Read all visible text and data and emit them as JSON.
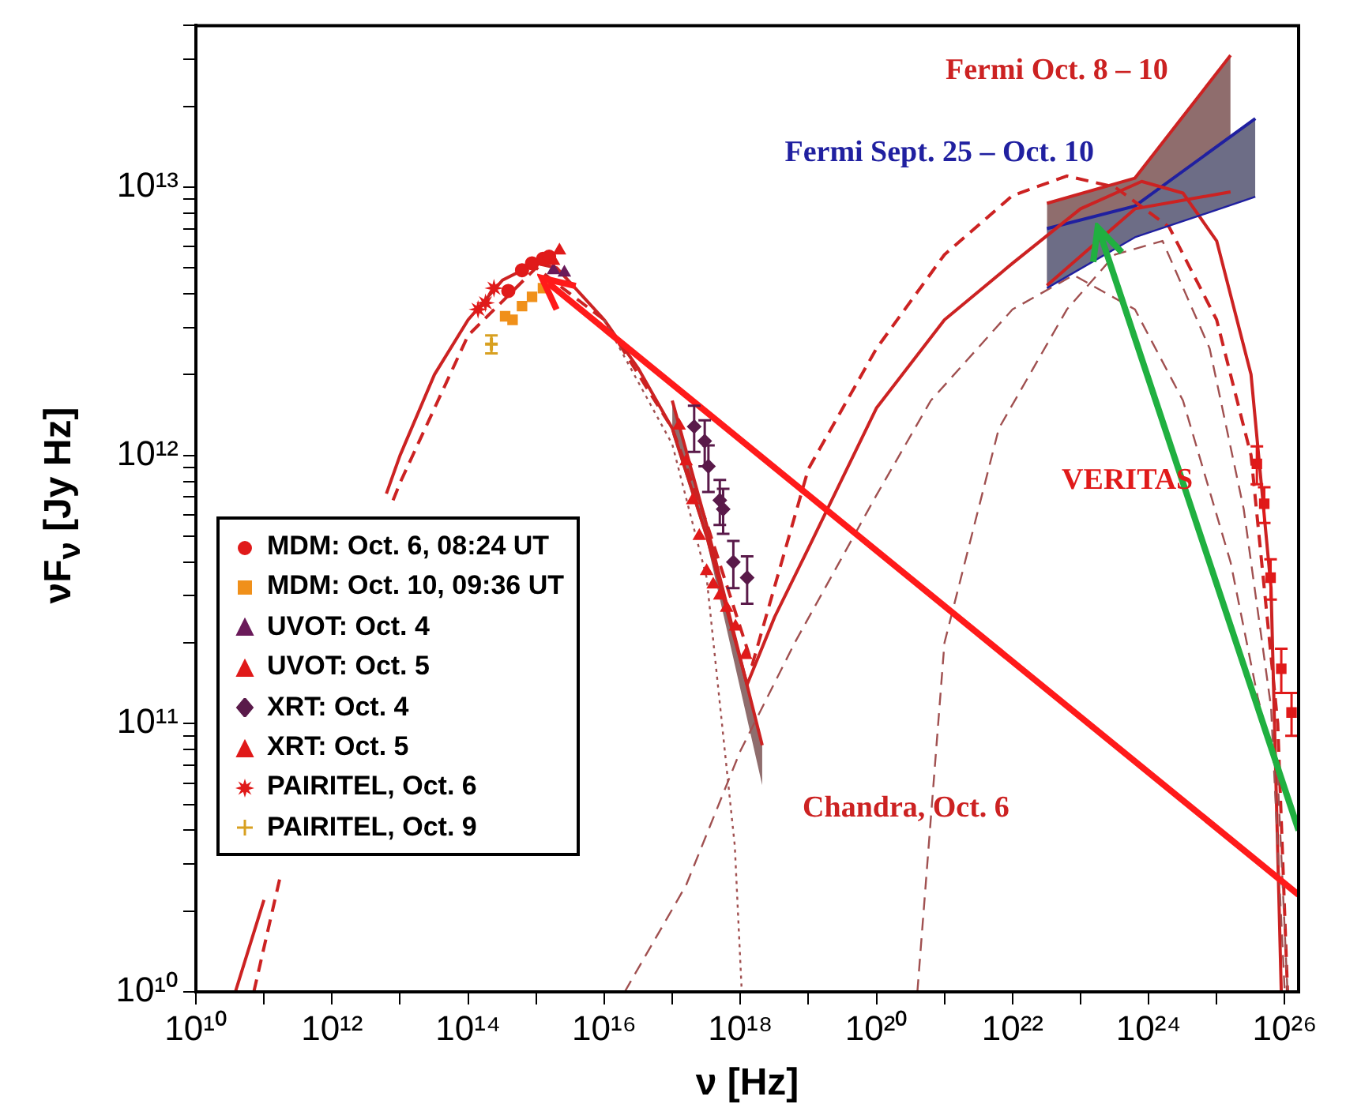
{
  "chart_data": {
    "type": "scatter",
    "xlabel": "ν [Hz]",
    "ylabel": "νF$_{ν}$ [Jy Hz]",
    "log": "xy",
    "grid": false,
    "legend": "left",
    "xlim": [
      10000000000.0,
      1.6e+26
    ],
    "ylim": [
      10000000000.0,
      40000000000000.0
    ],
    "xticks": [
      {
        "value": 10000000000.0,
        "label": "10¹⁰"
      },
      {
        "value": 100000000000.0,
        "label": null
      },
      {
        "value": 1000000000000.0,
        "label": "10¹²"
      },
      {
        "value": 10000000000000.0,
        "label": null
      },
      {
        "value": 100000000000000.0,
        "label": "10¹⁴"
      },
      {
        "value": 1000000000000000.0,
        "label": null
      },
      {
        "value": 1e+16,
        "label": "10¹⁶"
      },
      {
        "value": 1e+17,
        "label": null
      },
      {
        "value": 1e+18,
        "label": "10¹⁸"
      },
      {
        "value": 1e+19,
        "label": null
      },
      {
        "value": 1e+20,
        "label": "10²⁰"
      },
      {
        "value": 1e+21,
        "label": null
      },
      {
        "value": 1e+22,
        "label": "10²²"
      },
      {
        "value": 1e+23,
        "label": null
      },
      {
        "value": 1e+24,
        "label": "10²⁴"
      },
      {
        "value": 1e+25,
        "label": null
      },
      {
        "value": 1e+26,
        "label": "10²⁶"
      }
    ],
    "yticks": [
      {
        "value": 10000000000.0,
        "label": "10¹⁰"
      },
      {
        "value": 20000000000.0,
        "label": null
      },
      {
        "value": 30000000000.0,
        "label": null
      },
      {
        "value": 40000000000.0,
        "label": null
      },
      {
        "value": 50000000000.0,
        "label": null
      },
      {
        "value": 60000000000.0,
        "label": null
      },
      {
        "value": 70000000000.0,
        "label": null
      },
      {
        "value": 80000000000.0,
        "label": null
      },
      {
        "value": 90000000000.0,
        "label": null
      },
      {
        "value": 100000000000.0,
        "label": "10¹¹"
      },
      {
        "value": 200000000000.0,
        "label": null
      },
      {
        "value": 300000000000.0,
        "label": null
      },
      {
        "value": 400000000000.0,
        "label": null
      },
      {
        "value": 500000000000.0,
        "label": null
      },
      {
        "value": 600000000000.0,
        "label": null
      },
      {
        "value": 700000000000.0,
        "label": null
      },
      {
        "value": 800000000000.0,
        "label": null
      },
      {
        "value": 900000000000.0,
        "label": null
      },
      {
        "value": 1000000000000.0,
        "label": "10¹²"
      },
      {
        "value": 2000000000000.0,
        "label": null
      },
      {
        "value": 3000000000000.0,
        "label": null
      },
      {
        "value": 4000000000000.0,
        "label": null
      },
      {
        "value": 5000000000000.0,
        "label": null
      },
      {
        "value": 6000000000000.0,
        "label": null
      },
      {
        "value": 7000000000000.0,
        "label": null
      },
      {
        "value": 8000000000000.0,
        "label": null
      },
      {
        "value": 9000000000000.0,
        "label": null
      },
      {
        "value": 10000000000000.0,
        "label": "10¹³"
      },
      {
        "value": 20000000000000.0,
        "label": null
      },
      {
        "value": 30000000000000.0,
        "label": null
      },
      {
        "value": 40000000000000.0,
        "label": null
      }
    ],
    "series": [
      {
        "type": "line",
        "name": "Fermi Oct. 8 – 10",
        "color": "#cc2222",
        "line_style": "solid",
        "x": [
          3.2e+22,
          6.3e+23,
          1.6e+25
        ],
        "values": [
          8700000000000.0,
          10800000000000.0,
          31000000000000.0
        ],
        "lower": [
          4300000000000.0,
          8300000000000.0,
          9600000000000.0
        ],
        "upper": [
          8700000000000.0,
          10800000000000.0,
          31000000000000.0
        ]
      },
      {
        "type": "line",
        "name": "Fermi Sept. 25 – Oct. 10",
        "color": "#2020a0",
        "line_style": "solid",
        "x": [
          3.2e+22,
          6.3e+23,
          3.7e+25
        ],
        "values": [
          7000000000000.0,
          8500000000000.0,
          18000000000000.0
        ],
        "lower": [
          4200000000000.0,
          6500000000000.0,
          9200000000000.0
        ],
        "upper": [
          7000000000000.0,
          8500000000000.0,
          18000000000000.0
        ]
      },
      {
        "type": "line",
        "name": "Chandra, Oct. 6",
        "color": "#cc2222",
        "line_style": "solid",
        "x": [
          1e+17,
          3.2e+17,
          2.1e+18
        ],
        "values": [
          1600000000000.0,
          550000000000.0,
          83000000000.0
        ],
        "lower": [
          1200000000000.0,
          480000000000.0,
          59000000000.0
        ],
        "upper": [
          1600000000000.0,
          550000000000.0,
          83000000000.0
        ]
      },
      {
        "type": "line",
        "color": "#cc2222",
        "line_style": "solid",
        "x": [
          38000000000.0,
          100000000000.0,
          160000000000.0,
          320000000000.0,
          1000000000000.0,
          4600000000000.0,
          6300000000000.0,
          10000000000000.0,
          32000000000000.0,
          100000000000000.0,
          320000000000000.0,
          1000000000000000.0,
          2000000000000000.0,
          1e+16,
          3.2e+16,
          1e+17,
          3.2e+17,
          1.26e+18,
          3.2e+18,
          1e+19,
          1e+20,
          1e+21,
          1e+22,
          1e+23,
          7.9e+23,
          3.2e+24,
          1e+25,
          3.2e+25,
          6.3e+25,
          8.9e+25
        ],
        "values": [
          10000000000.0,
          22000000000.0,
          null,
          null,
          null,
          null,
          720000000000.0,
          1000000000000.0,
          2000000000000.0,
          3200000000000.0,
          4500000000000.0,
          5200000000000.0,
          5000000000000.0,
          3200000000000.0,
          2100000000000.0,
          1260000000000.0,
          500000000000.0,
          140000000000.0,
          250000000000.0,
          450000000000.0,
          1500000000000.0,
          3200000000000.0,
          5200000000000.0,
          8300000000000.0,
          10500000000000.0,
          9500000000000.0,
          6300000000000.0,
          2000000000000.0,
          320000000000.0,
          10000000000.0
        ]
      },
      {
        "type": "line",
        "color": "#cc2222",
        "line_style": "dashed",
        "x": [
          71000000000.0,
          180000000000.0,
          200000000000.0,
          1000000000000.0,
          7900000000000.0,
          10000000000000.0,
          100000000000000.0,
          1000000000000000.0,
          1e+16,
          1e+17,
          3.2e+17,
          1.5e+18,
          1e+19,
          1e+20,
          1e+21,
          1e+22,
          6.3e+22,
          3.2e+23,
          2e+24,
          1e+25,
          3.2e+25,
          7.9e+25,
          1.1e+26
        ],
        "values": [
          10000000000.0,
          28000000000.0,
          null,
          null,
          680000000000.0,
          790000000000.0,
          2800000000000.0,
          5000000000000.0,
          3200000000000.0,
          1260000000000.0,
          560000000000.0,
          166000000000.0,
          890000000000.0,
          2500000000000.0,
          5600000000000.0,
          9300000000000.0,
          11000000000000.0,
          10000000000000.0,
          7100000000000.0,
          3200000000000.0,
          1000000000000.0,
          100000000000.0,
          10000000000.0
        ]
      },
      {
        "type": "line",
        "color": "#a05050",
        "line_style": "dashed",
        "x": [
          2e+16,
          1.6e+17,
          1e+18,
          6.3e+18,
          1e+20,
          6.3e+20,
          1e+22,
          7.9e+22,
          6.3e+23,
          3.2e+24,
          1.6e+25,
          4e+25,
          7.9e+25,
          1.1e+26
        ],
        "values": [
          10000000000.0,
          25000000000.0,
          79000000000.0,
          200000000000.0,
          710000000000.0,
          1600000000000.0,
          3500000000000.0,
          4700000000000.0,
          3500000000000.0,
          1600000000000.0,
          400000000000.0,
          126000000000.0,
          63000000000.0,
          10000000000.0
        ]
      },
      {
        "type": "line",
        "color": "#a05050",
        "line_style": "dotted",
        "x": [
          1e+16,
          1e+17,
          3.2e+17,
          8.3e+17,
          1.05e+18
        ],
        "values": [
          3200000000000.0,
          1100000000000.0,
          350000000000.0,
          35000000000.0,
          10000000000.0
        ]
      },
      {
        "type": "line",
        "color": "#a05050",
        "line_style": "dashed",
        "x": [
          4e+20,
          1e+21,
          6.3e+21,
          6.3e+22,
          3.2e+23,
          1.6e+24,
          7.9e+24,
          2.5e+25,
          6.3e+25,
          1e+26
        ],
        "values": [
          10000000000.0,
          200000000000.0,
          1260000000000.0,
          3500000000000.0,
          5600000000000.0,
          6300000000000.0,
          2500000000000.0,
          630000000000.0,
          115000000000.0,
          10000000000.0
        ]
      },
      {
        "name": "MDM: Oct. 6, 08:24 UT",
        "color": "#e01a1a",
        "marker": "circle",
        "x": [
          390000000000000.0,
          620000000000000.0,
          870000000000000.0,
          1260000000000000.0,
          1550000000000000.0
        ],
        "values": [
          4100000000000.0,
          4900000000000.0,
          5200000000000.0,
          5400000000000.0,
          5500000000000.0
        ]
      },
      {
        "name": "MDM: Oct. 10, 09:36 UT",
        "color": "#f0901a",
        "marker": "square",
        "x": [
          350000000000000.0,
          450000000000000.0,
          620000000000000.0,
          870000000000000.0,
          1260000000000000.0
        ],
        "values": [
          3300000000000.0,
          3200000000000.0,
          3600000000000.0,
          3900000000000.0,
          4200000000000.0
        ]
      },
      {
        "name": "UVOT: Oct. 4",
        "color": "#6a1a5a",
        "marker": "triangle",
        "x": [
          1800000000000000.0,
          2600000000000000.0
        ],
        "values": [
          4900000000000.0,
          4800000000000.0
        ]
      },
      {
        "name": "UVOT: Oct. 5",
        "color": "#e01a1a",
        "marker": "triangle",
        "x": [
          1800000000000000.0,
          2200000000000000.0
        ],
        "values": [
          5300000000000.0,
          5800000000000.0
        ]
      },
      {
        "name": "XRT: Oct. 4",
        "color": "#5a1a4a",
        "marker": "diamond",
        "x": [
          2.1e+17,
          3e+17,
          3.4e+17,
          5e+17,
          5.6e+17,
          7.9e+17,
          1.26e+18
        ],
        "values": [
          1280000000000.0,
          1130000000000.0,
          910000000000.0,
          680000000000.0,
          630000000000.0,
          400000000000.0,
          350000000000.0
        ],
        "errors": [
          250000000000.0,
          220000000000.0,
          180000000000.0,
          130000000000.0,
          120000000000.0,
          80000000000.0,
          70000000000.0
        ]
      },
      {
        "name": "XRT: Oct. 5",
        "color": "#e01a1a",
        "marker": "triangle",
        "x": [
          1.26e+17,
          1.6e+17,
          2e+17,
          2.5e+17,
          3.2e+17,
          4e+17,
          5e+17,
          6.3e+17,
          8.5e+17,
          1.2e+18
        ],
        "values": [
          1290000000000.0,
          950000000000.0,
          680000000000.0,
          500000000000.0,
          370000000000.0,
          330000000000.0,
          300000000000.0,
          270000000000.0,
          230000000000.0,
          180000000000.0
        ]
      },
      {
        "name": "PAIRITEL, Oct. 6",
        "color": "#e01a1a",
        "marker": "star",
        "x": [
          140000000000000.0,
          180000000000000.0,
          240000000000000.0
        ],
        "values": [
          3500000000000.0,
          3700000000000.0,
          4200000000000.0
        ]
      },
      {
        "name": "PAIRITEL, Oct. 9",
        "color": "#d8a020",
        "marker": "cross",
        "x": [
          220000000000000.0
        ],
        "values": [
          2600000000000.0
        ],
        "errors": [
          200000000000.0
        ]
      },
      {
        "name": "VERITAS",
        "color": "#e01a1a",
        "marker": "square",
        "x": [
          3.9e+25,
          5e+25,
          6.2e+25,
          8.9e+25,
          1.26e+26
        ],
        "values": [
          930000000000.0,
          660000000000.0,
          350000000000.0,
          160000000000.0,
          110000000000.0
        ],
        "errors": [
          150000000000.0,
          100000000000.0,
          60000000000.0,
          30000000000.0,
          20000000000.0
        ]
      },
      {
        "type": "line",
        "color": "#cc2222",
        "line_style": "solid",
        "x": [
          3.2e+22,
          6.3e+23,
          1.6e+25
        ],
        "values": [
          4300000000000.0,
          8300000000000.0,
          9600000000000.0
        ]
      },
      {
        "type": "line",
        "color": "#2020a0",
        "line_style": "solid",
        "x": [
          3.2e+22,
          6.3e+23,
          3.7e+25
        ],
        "values": [
          4200000000000.0,
          6500000000000.0,
          9200000000000.0
        ]
      },
      {
        "type": "line",
        "color": "#ff1a1a",
        "line_style": "solid",
        "x": [
          1.6e+26,
          1200000000000000.0
        ],
        "values": [
          23000000000.0,
          4600000000000.0
        ]
      },
      {
        "type": "line",
        "color": "#20b040",
        "line_style": "solid",
        "x": [
          1.6e+26,
          1.8e+23
        ],
        "values": [
          40000000000.0,
          7100000000000.0
        ]
      }
    ]
  }
}
